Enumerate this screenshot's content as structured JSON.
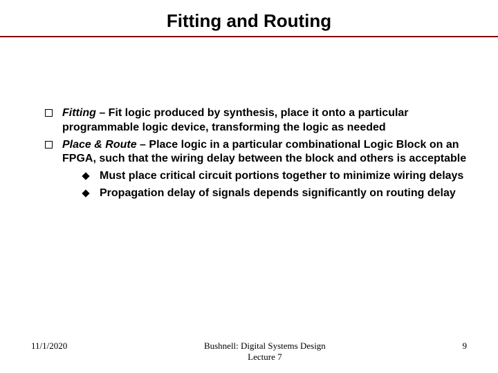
{
  "slide": {
    "title": "Fitting and Routing",
    "bullets": [
      {
        "term": "Fitting",
        "separator": " – ",
        "desc": "Fit logic produced by synthesis, place it onto a particular programmable logic device, transforming the logic as needed"
      },
      {
        "term": "Place & Route",
        "separator": " – ",
        "desc": "Place logic in a particular combinational Logic Block on an FPGA, such that the wiring delay between the block and others is acceptable",
        "subs": [
          "Must place critical circuit portions together to minimize wiring delays",
          "Propagation delay of signals depends significantly on routing delay"
        ]
      }
    ],
    "footer": {
      "date": "11/1/2020",
      "center_line1": "Bushnell: Digital Systems Design",
      "center_line2": "Lecture 7",
      "slide_number": "9"
    }
  },
  "style": {
    "background_color": "#ffffff",
    "title_fontsize": 26,
    "body_fontsize": 16,
    "footer_fontsize": 13,
    "text_color": "#000000",
    "rule_color": "#800000"
  }
}
